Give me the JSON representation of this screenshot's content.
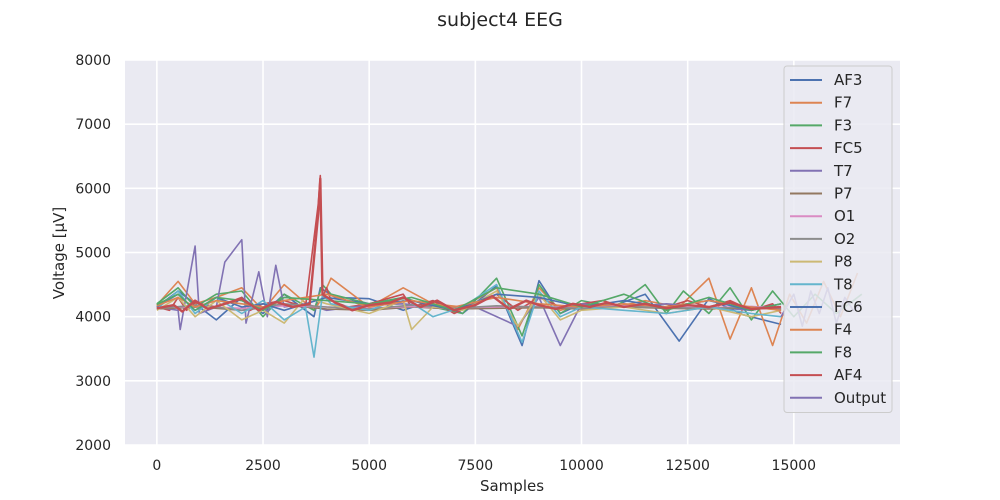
{
  "chart_data": {
    "type": "line",
    "title": "subject4 EEG",
    "xlabel": "Samples",
    "ylabel": "Voltage [µV]",
    "xlim": [
      -750,
      17500
    ],
    "ylim": [
      2000,
      8000
    ],
    "x_ticks": [
      0,
      2500,
      5000,
      7500,
      10000,
      12500,
      15000
    ],
    "x_tick_labels": [
      "0",
      "2500",
      "5000",
      "7500",
      "10000",
      "12500",
      "15000"
    ],
    "y_ticks": [
      2000,
      3000,
      4000,
      5000,
      6000,
      7000,
      8000
    ],
    "y_tick_labels": [
      "2000",
      "3000",
      "4000",
      "5000",
      "6000",
      "7000",
      "8000"
    ],
    "grid": true,
    "legend_position": "top-right",
    "background_color": "#eaeaf2",
    "series": [
      {
        "name": "AF3",
        "color": "#4c72b0",
        "x": [
          0,
          500,
          900,
          1400,
          2000,
          2500,
          3000,
          3700,
          3850,
          4200,
          5000,
          5800,
          6500,
          7200,
          8000,
          8600,
          9000,
          9500,
          10000,
          10800,
          11500,
          12300,
          13000,
          13800,
          14700
        ],
        "values": [
          4150,
          4400,
          4200,
          3950,
          4300,
          4050,
          4350,
          4000,
          4450,
          4300,
          4280,
          4100,
          4250,
          4050,
          4480,
          3550,
          4560,
          4050,
          4200,
          4180,
          4350,
          3620,
          4280,
          4030,
          3880
        ]
      },
      {
        "name": "F7",
        "color": "#dd8452",
        "x": [
          0,
          500,
          900,
          1400,
          2000,
          2500,
          3000,
          3700,
          3900,
          4100,
          5000,
          5800,
          6500,
          7200,
          8000,
          8500,
          9000,
          9500,
          10000,
          10800,
          11500,
          12300,
          13000,
          13500,
          14000,
          14500,
          14900,
          15300,
          15700,
          16100,
          16500
        ],
        "values": [
          4180,
          4550,
          4200,
          4300,
          4450,
          4100,
          4500,
          4100,
          4300,
          4600,
          4150,
          4450,
          4200,
          4150,
          4450,
          3800,
          4450,
          4100,
          4200,
          4150,
          4250,
          4150,
          4600,
          3650,
          4450,
          3550,
          4350,
          3900,
          4550,
          4000,
          4680
        ]
      },
      {
        "name": "F3",
        "color": "#55a868",
        "x": [
          0,
          500,
          900,
          1400,
          2000,
          2500,
          3000,
          3700,
          3900,
          4100,
          5000,
          5800,
          6500,
          7200,
          8000,
          8600,
          9000,
          9500,
          10000,
          10800,
          11500,
          12000,
          12400,
          13000,
          13500,
          14000,
          14500,
          15000,
          15500,
          16000,
          16600
        ],
        "values": [
          4200,
          4450,
          4150,
          4350,
          4400,
          4000,
          4350,
          4100,
          4500,
          4350,
          4200,
          4300,
          4150,
          4050,
          4600,
          3700,
          4500,
          4050,
          4250,
          4150,
          4500,
          4050,
          4400,
          4050,
          4450,
          3950,
          4400,
          4000,
          4350,
          4050,
          4350
        ]
      },
      {
        "name": "FC5",
        "color": "#c44e52",
        "x": [
          0,
          300,
          500,
          700,
          900,
          1400,
          2000,
          2200,
          2500,
          3000,
          3500,
          3800,
          3850,
          3900,
          4000,
          4100,
          4500,
          5000,
          5800,
          6000,
          6500,
          7000,
          7500,
          8000,
          8500,
          9000,
          9500,
          10000,
          10500,
          11000,
          11500,
          12000,
          12500,
          13000,
          13500,
          14000,
          14500,
          14700
        ],
        "values": [
          4150,
          4100,
          4300,
          4100,
          4220,
          4150,
          4300,
          4100,
          4200,
          4250,
          4150,
          5750,
          6200,
          4300,
          4450,
          4250,
          4150,
          4200,
          4350,
          4150,
          4250,
          4050,
          4200,
          4350,
          4100,
          4300,
          4150,
          4200,
          4250,
          4150,
          4200,
          4150,
          4250,
          4150,
          4250,
          4100,
          4200,
          4050
        ]
      },
      {
        "name": "T7",
        "color": "#8172b3",
        "x": [
          0,
          500,
          550,
          900,
          1000,
          1400,
          1600,
          2000,
          2100,
          2400,
          2600,
          2800,
          3000,
          3500,
          4000,
          5000,
          5800,
          6500,
          7500,
          8500,
          9000,
          9500,
          10000,
          11000,
          12000,
          13000,
          14000
        ],
        "values": [
          4150,
          4100,
          3800,
          5100,
          4050,
          4150,
          4850,
          5200,
          3900,
          4700,
          4000,
          4800,
          4150,
          4200,
          4100,
          4180,
          4200,
          4150,
          4150,
          3850,
          4300,
          3550,
          4200,
          4150,
          4200,
          4150,
          4100
        ]
      },
      {
        "name": "P7",
        "color": "#937860",
        "x": [
          0,
          1000,
          2000,
          3000,
          4000,
          5000,
          6000,
          7000,
          8000,
          9000,
          10000,
          11000,
          12000,
          13000,
          14000,
          14700
        ],
        "values": [
          4120,
          4150,
          4100,
          4180,
          4120,
          4100,
          4150,
          4120,
          4130,
          4140,
          4120,
          4150,
          4130,
          4120,
          4140,
          4110
        ]
      },
      {
        "name": "O1",
        "color": "#da8bc3",
        "x": [
          0,
          1000,
          2000,
          3000,
          4000,
          5000,
          6000,
          7000,
          8000,
          9000,
          10000,
          11000,
          12000,
          13000,
          14000,
          14700
        ],
        "values": [
          4140,
          4160,
          4130,
          4170,
          4150,
          4130,
          4160,
          4140,
          4150,
          4160,
          4140,
          4170,
          4150,
          4140,
          4160,
          4130
        ]
      },
      {
        "name": "O2",
        "color": "#8c8c8c",
        "x": [
          0,
          1000,
          2000,
          3000,
          4000,
          5000,
          6000,
          7000,
          8000,
          9000,
          10000,
          11000,
          12000,
          13000,
          14000,
          14700
        ],
        "values": [
          4130,
          4180,
          4100,
          4200,
          4150,
          4120,
          4180,
          4130,
          4170,
          4150,
          4130,
          4160,
          4140,
          4130,
          4150,
          4120
        ]
      },
      {
        "name": "P8",
        "color": "#ccb974",
        "x": [
          0,
          500,
          900,
          1400,
          2000,
          2500,
          3000,
          3500,
          4000,
          5000,
          5800,
          6000,
          6500,
          7200,
          8000,
          8500,
          9000,
          9500,
          10000,
          11000,
          12000,
          13000,
          14000,
          14700
        ],
        "values": [
          4100,
          4300,
          4000,
          4250,
          3950,
          4100,
          3900,
          4300,
          4200,
          4050,
          4250,
          3800,
          4150,
          4100,
          4400,
          3850,
          4350,
          3950,
          4100,
          4150,
          4050,
          4150,
          4000,
          4100
        ]
      },
      {
        "name": "T8",
        "color": "#64b5cd",
        "x": [
          0,
          500,
          900,
          1400,
          2000,
          2500,
          3000,
          3500,
          3700,
          3900,
          4100,
          5000,
          5800,
          6500,
          7200,
          8000,
          8600,
          9000,
          9500,
          10000,
          11000,
          12000,
          13000,
          14000,
          14700
        ],
        "values": [
          4120,
          4400,
          4050,
          4300,
          4050,
          4250,
          3950,
          4150,
          3370,
          4350,
          4200,
          4100,
          4300,
          4000,
          4150,
          4500,
          3600,
          4400,
          4000,
          4150,
          4100,
          4050,
          4150,
          4050,
          4000
        ]
      },
      {
        "name": "FC6",
        "color": "#4c72b0",
        "x": [
          0,
          500,
          900,
          1400,
          2000,
          2500,
          3000,
          4000,
          5000,
          6000,
          7000,
          8000,
          9000,
          10000,
          11000,
          12000,
          13000,
          14000,
          14700
        ],
        "values": [
          4160,
          4350,
          4100,
          4300,
          4150,
          4200,
          4100,
          4300,
          4200,
          4250,
          4100,
          4350,
          4300,
          4150,
          4250,
          4150,
          4250,
          4100,
          4200
        ]
      },
      {
        "name": "F4",
        "color": "#dd8452",
        "x": [
          0,
          500,
          900,
          1400,
          2000,
          2500,
          3000,
          4000,
          5000,
          6000,
          7000,
          8000,
          9000,
          10000,
          11000,
          12000,
          13000,
          14000,
          14700
        ],
        "values": [
          4170,
          4300,
          4150,
          4250,
          4200,
          4150,
          4250,
          4350,
          4150,
          4250,
          4150,
          4300,
          4200,
          4150,
          4200,
          4150,
          4250,
          4150,
          4100
        ]
      },
      {
        "name": "F8",
        "color": "#55a868",
        "x": [
          0,
          500,
          900,
          1400,
          2000,
          2500,
          3000,
          4000,
          5000,
          6000,
          7000,
          8000,
          9000,
          10000,
          11000,
          12000,
          13000,
          14000,
          14700
        ],
        "values": [
          4190,
          4350,
          4100,
          4300,
          4250,
          4100,
          4300,
          4250,
          4200,
          4300,
          4100,
          4450,
          4350,
          4150,
          4350,
          4100,
          4300,
          4100,
          4200
        ]
      },
      {
        "name": "AF4",
        "color": "#c44e52",
        "x": [
          0,
          400,
          600,
          900,
          1200,
          1600,
          2000,
          2400,
          2800,
          3200,
          3600,
          3800,
          3850,
          3900,
          4200,
          4600,
          5000,
          5500,
          5800,
          6200,
          6600,
          7000,
          7500,
          7900,
          8300,
          8700,
          9000,
          9400,
          9800,
          10200,
          10600,
          11000,
          11500,
          12000,
          12500,
          13000,
          13500,
          14000,
          14700
        ],
        "values": [
          4130,
          4180,
          4080,
          4250,
          4120,
          4200,
          4280,
          4100,
          4230,
          4150,
          4200,
          5600,
          6150,
          4350,
          4220,
          4100,
          4180,
          4220,
          4300,
          4150,
          4250,
          4100,
          4180,
          4320,
          4120,
          4250,
          4180,
          4120,
          4200,
          4150,
          4220,
          4150,
          4200,
          4130,
          4180,
          4150,
          4220,
          4120,
          4150
        ]
      },
      {
        "name": "Output",
        "color": "#8172b3",
        "x": [
          14700,
          15000,
          15200,
          15400,
          15600,
          15800,
          16000,
          16200,
          16400,
          16600
        ],
        "values": [
          4000,
          4350,
          3850,
          4400,
          4050,
          4450,
          3900,
          4300,
          4100,
          4200
        ]
      }
    ]
  }
}
